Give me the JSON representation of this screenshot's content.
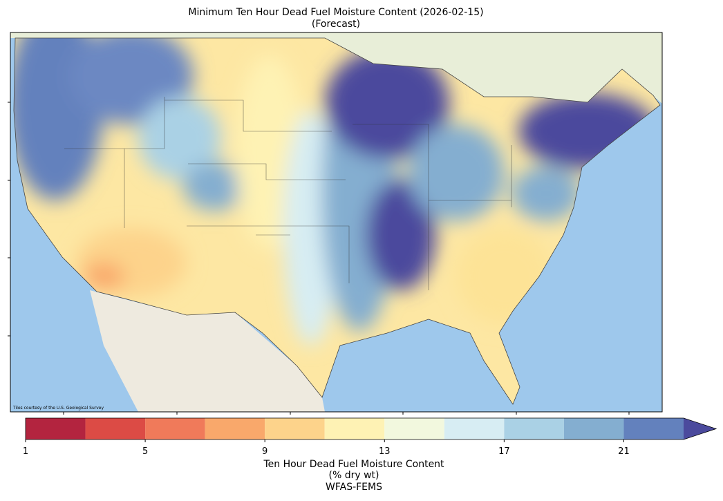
{
  "title": "Minimum Ten Hour Dead Fuel Moisture Content (2026-02-15)",
  "subtitle": "(Forecast)",
  "attribution": "Tiles courtesy of the U.S. Geological Survey",
  "colorbar": {
    "bounds": [
      1,
      3,
      5,
      7,
      9,
      11,
      13,
      15,
      17,
      19,
      21,
      23
    ],
    "colors": [
      "#b3243f",
      "#dc4b45",
      "#f07a5a",
      "#f9a86b",
      "#fdd38b",
      "#fef2b4",
      "#f2f8de",
      "#d7edf3",
      "#aad1e5",
      "#84aed0",
      "#6381bd"
    ],
    "extend_color": "#4b4a9d",
    "ticks": [
      1,
      5,
      9,
      13,
      17,
      21
    ],
    "label": "Ten Hour Dead Fuel Moisture Content",
    "units": "(% dry wt)",
    "source": "WFAS-FEMS"
  }
}
